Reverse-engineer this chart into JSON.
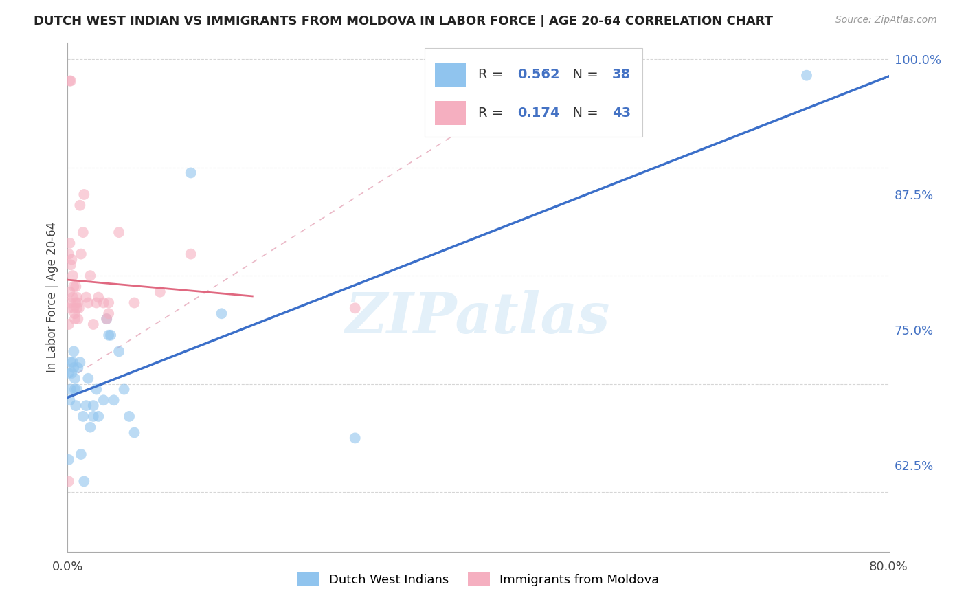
{
  "title": "DUTCH WEST INDIAN VS IMMIGRANTS FROM MOLDOVA IN LABOR FORCE | AGE 20-64 CORRELATION CHART",
  "source": "Source: ZipAtlas.com",
  "ylabel": "In Labor Force | Age 20-64",
  "x_min": 0.0,
  "x_max": 0.8,
  "y_min": 0.545,
  "y_max": 1.015,
  "x_ticks": [
    0.0,
    0.2,
    0.4,
    0.6,
    0.8
  ],
  "x_tick_labels": [
    "0.0%",
    "",
    "",
    "",
    "80.0%"
  ],
  "y_ticks": [
    0.625,
    0.75,
    0.875,
    1.0
  ],
  "y_tick_labels": [
    "62.5%",
    "75.0%",
    "87.5%",
    "100.0%"
  ],
  "grid_color": "#cccccc",
  "blue_scatter_color": "#90c4ee",
  "pink_scatter_color": "#f5afc0",
  "blue_line_color": "#3b6fc9",
  "pink_line_color": "#e06880",
  "dashed_line_color": "#e8b0c0",
  "legend_R1": "0.562",
  "legend_N1": "38",
  "legend_R2": "0.174",
  "legend_N2": "43",
  "legend_label1": "Dutch West Indians",
  "legend_label2": "Immigrants from Moldova",
  "watermark": "ZIPatlas",
  "value_color": "#4472c4",
  "blue_x": [
    0.001,
    0.002,
    0.003,
    0.003,
    0.004,
    0.005,
    0.006,
    0.006,
    0.007,
    0.007,
    0.008,
    0.009,
    0.01,
    0.012,
    0.013,
    0.015,
    0.016,
    0.018,
    0.02,
    0.022,
    0.025,
    0.025,
    0.028,
    0.03,
    0.035,
    0.038,
    0.04,
    0.042,
    0.045,
    0.05,
    0.055,
    0.06,
    0.065,
    0.12,
    0.15,
    0.28,
    0.72,
    0.001
  ],
  "blue_y": [
    0.71,
    0.685,
    0.72,
    0.695,
    0.71,
    0.72,
    0.715,
    0.73,
    0.705,
    0.695,
    0.68,
    0.695,
    0.715,
    0.72,
    0.635,
    0.67,
    0.61,
    0.68,
    0.705,
    0.66,
    0.67,
    0.68,
    0.695,
    0.67,
    0.685,
    0.76,
    0.745,
    0.745,
    0.685,
    0.73,
    0.695,
    0.67,
    0.655,
    0.895,
    0.765,
    0.65,
    0.985,
    0.63
  ],
  "pink_x": [
    0.001,
    0.001,
    0.001,
    0.002,
    0.002,
    0.003,
    0.003,
    0.004,
    0.005,
    0.005,
    0.006,
    0.006,
    0.007,
    0.007,
    0.008,
    0.008,
    0.009,
    0.009,
    0.01,
    0.01,
    0.011,
    0.012,
    0.013,
    0.015,
    0.016,
    0.018,
    0.02,
    0.022,
    0.025,
    0.028,
    0.03,
    0.035,
    0.038,
    0.04,
    0.05,
    0.065,
    0.09,
    0.12,
    0.002,
    0.003,
    0.001,
    0.04,
    0.28
  ],
  "pink_y": [
    0.755,
    0.77,
    0.82,
    0.83,
    0.785,
    0.775,
    0.81,
    0.815,
    0.8,
    0.78,
    0.79,
    0.77,
    0.76,
    0.765,
    0.775,
    0.79,
    0.78,
    0.77,
    0.775,
    0.76,
    0.77,
    0.865,
    0.82,
    0.84,
    0.875,
    0.78,
    0.775,
    0.8,
    0.755,
    0.775,
    0.78,
    0.775,
    0.76,
    0.765,
    0.84,
    0.775,
    0.785,
    0.82,
    0.98,
    0.98,
    0.61,
    0.775,
    0.77
  ]
}
